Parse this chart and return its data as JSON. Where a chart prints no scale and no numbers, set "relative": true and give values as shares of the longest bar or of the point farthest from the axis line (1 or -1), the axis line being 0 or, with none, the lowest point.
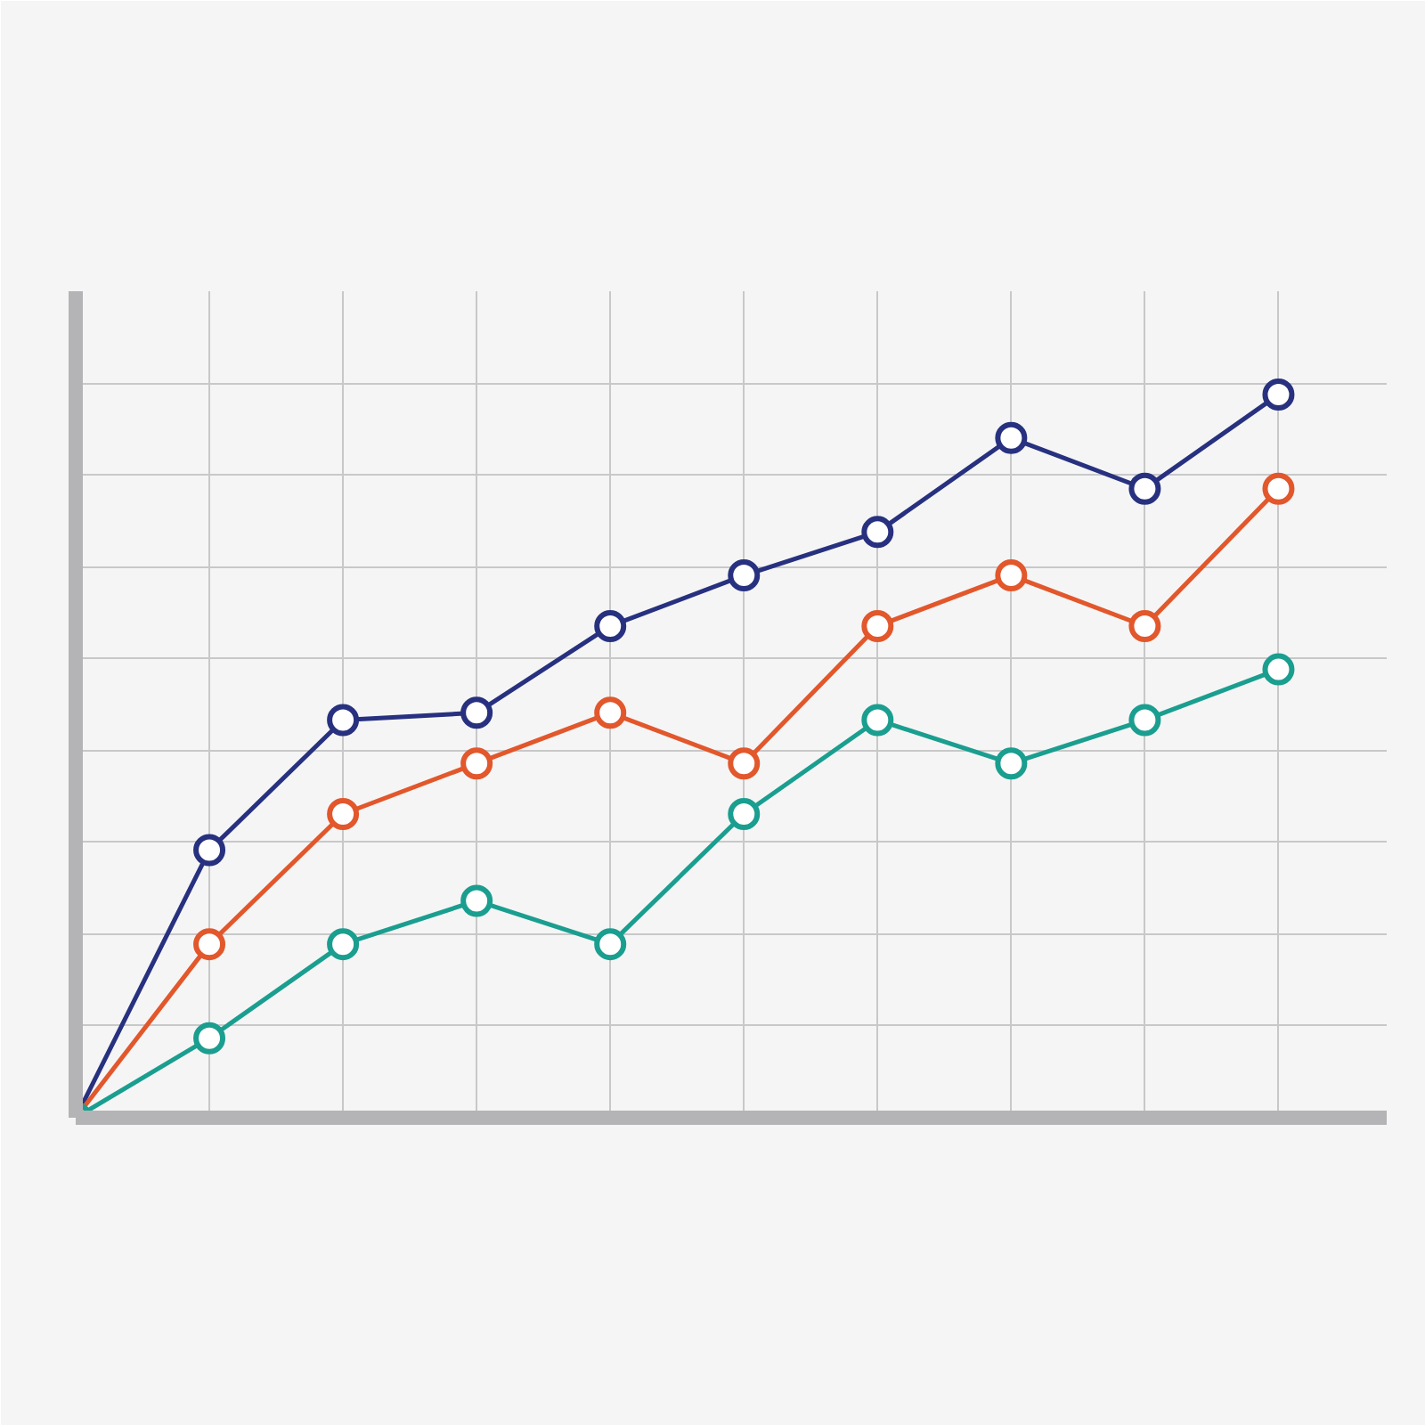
{
  "chart_data": {
    "type": "line",
    "relative": true,
    "categories": [
      null,
      null,
      null,
      null,
      null,
      null,
      null,
      null,
      null,
      null
    ],
    "series": [
      {
        "color": "#27317f",
        "values": [
          0,
          0.37,
          0.55,
          0.56,
          0.68,
          0.75,
          0.81,
          0.94,
          0.87,
          1.0
        ]
      },
      {
        "color": "#e2572b",
        "values": [
          0,
          0.24,
          0.42,
          0.49,
          0.56,
          0.49,
          0.68,
          0.75,
          0.68,
          0.87
        ]
      },
      {
        "color": "#1a9e8f",
        "values": [
          0,
          0.11,
          0.24,
          0.3,
          0.24,
          0.42,
          0.55,
          0.49,
          0.55,
          0.62
        ]
      }
    ],
    "grid": true,
    "tick_labels": false,
    "marker": "circle",
    "line_style": "solid"
  }
}
